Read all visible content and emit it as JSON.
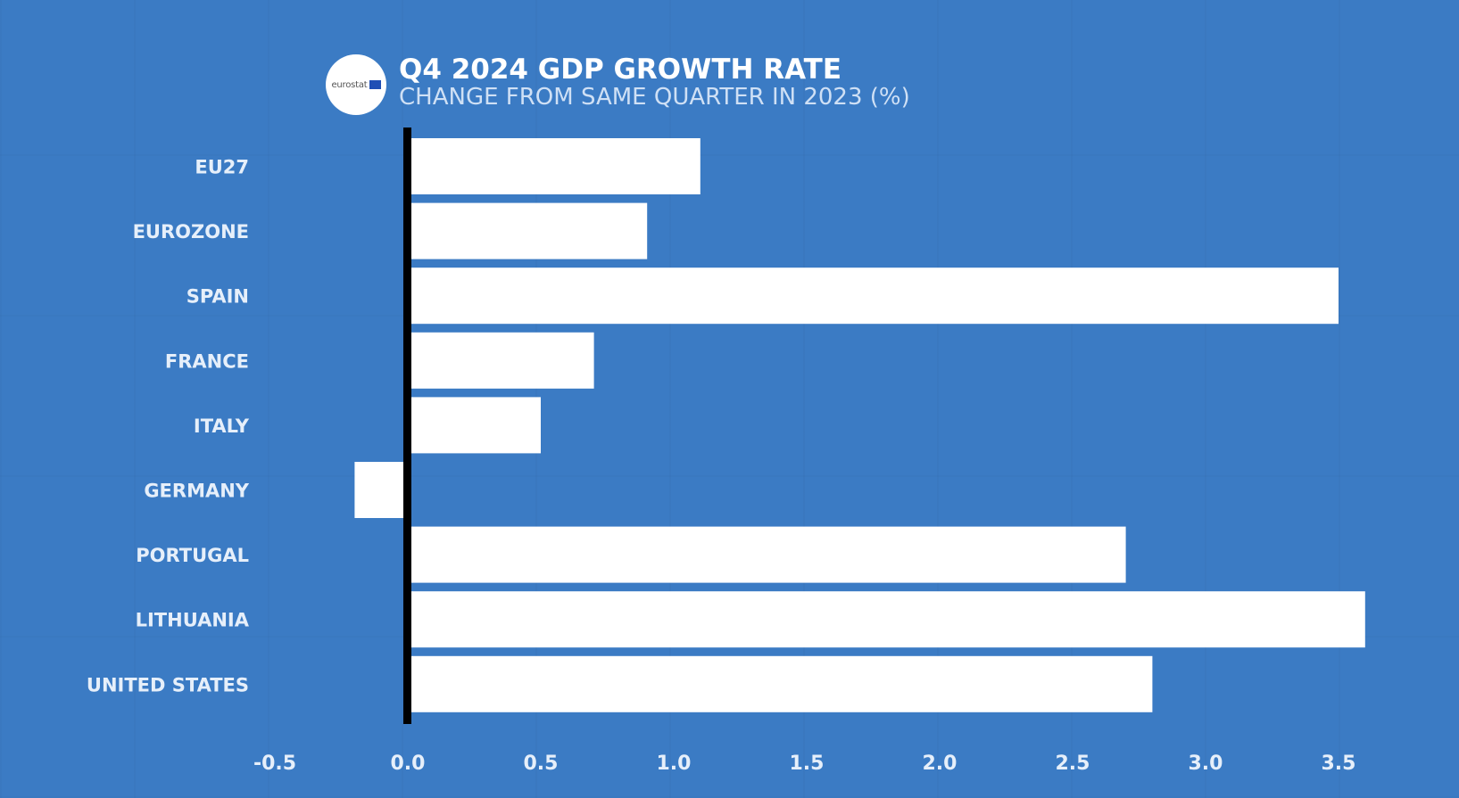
{
  "header": {
    "logo_text": "eurostat",
    "title": "Q4 2024 GDP GROWTH RATE",
    "subtitle": "CHANGE FROM SAME QUARTER IN 2023 (%)"
  },
  "colors": {
    "background": "#3b7bc4",
    "bar": "#ffffff",
    "axis": "#000000",
    "label": "#e6effa"
  },
  "chart_data": {
    "type": "bar",
    "orientation": "horizontal",
    "title": "Q4 2024 GDP GROWTH RATE",
    "subtitle": "CHANGE FROM SAME QUARTER IN 2023 (%)",
    "xlabel": "",
    "ylabel": "",
    "categories": [
      "EU27",
      "EUROZONE",
      "SPAIN",
      "FRANCE",
      "ITALY",
      "GERMANY",
      "PORTUGAL",
      "LITHUANIA",
      "UNITED STATES"
    ],
    "values": [
      1.1,
      0.9,
      3.5,
      0.7,
      0.5,
      -0.2,
      2.7,
      3.6,
      2.8
    ],
    "xlim": [
      -0.5,
      3.6
    ],
    "xticks": [
      -0.5,
      0.0,
      0.5,
      1.0,
      1.5,
      2.0,
      2.5,
      3.0,
      3.5
    ],
    "xtick_labels": [
      "-0.5",
      "0.0",
      "0.5",
      "1.0",
      "1.5",
      "2.0",
      "2.5",
      "3.0",
      "3.5"
    ],
    "grid": false,
    "legend": "none"
  }
}
